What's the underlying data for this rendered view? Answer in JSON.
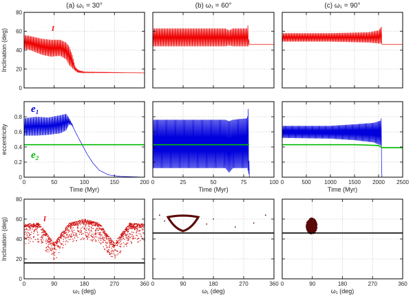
{
  "colors": {
    "inclination_red": "#ee0000",
    "ecc_blue": "#0000dd",
    "ecc_green": "#00bb00",
    "scatter_dark": "#5a0a0a",
    "scatter_red": "#d01010",
    "grid": "#b0b0b0",
    "frame": "#000000"
  },
  "chart_data": [
    {
      "id": "r0c0",
      "type": "line",
      "title": "(a) ω₁ = 30°",
      "ylabel": "Inclination (deg)",
      "xlabel": "",
      "annotation": "I",
      "xlim": [
        0,
        200
      ],
      "ylim": [
        0,
        80
      ],
      "xticks": [
        0,
        50,
        100,
        150,
        200
      ],
      "yticks": [
        0,
        20,
        40,
        60,
        80
      ],
      "yticklabels": [
        "0",
        "20",
        "40",
        "60",
        "80"
      ],
      "xticklabels": [],
      "series": [
        {
          "name": "I",
          "color": "#ee0000",
          "kind": "band",
          "points": [
            [
              0,
              41,
              56
            ],
            [
              10,
              40,
              55
            ],
            [
              30,
              35,
              52
            ],
            [
              45,
              33,
              51
            ],
            [
              60,
              34,
              51
            ],
            [
              70,
              30,
              48
            ],
            [
              75,
              24,
              44
            ],
            [
              80,
              21,
              35
            ],
            [
              85,
              18,
              22
            ],
            [
              90,
              16,
              19
            ],
            [
              100,
              16,
              17
            ],
            [
              200,
              16,
              16
            ]
          ]
        }
      ]
    },
    {
      "id": "r0c1",
      "type": "line",
      "title": "(b) ω₁ = 60°",
      "ylabel": "",
      "xlabel": "",
      "annotation": "",
      "xlim": [
        0,
        100
      ],
      "ylim": [
        0,
        80
      ],
      "xticks": [
        0,
        25,
        50,
        75,
        100
      ],
      "yticks": [
        0,
        20,
        40,
        60,
        80
      ],
      "yticklabels": [],
      "xticklabels": [],
      "series": [
        {
          "name": "I",
          "color": "#ee0000",
          "kind": "band",
          "points": [
            [
              0,
              44,
              63
            ],
            [
              60,
              44,
              63
            ],
            [
              63,
              45,
              61
            ],
            [
              66,
              44,
              63
            ],
            [
              78,
              44,
              63
            ],
            [
              79,
              44,
              70
            ],
            [
              79.3,
              46,
              46
            ],
            [
              100,
              46,
              46
            ]
          ]
        }
      ]
    },
    {
      "id": "r0c2",
      "type": "line",
      "title": "(c) ω₁ = 90°",
      "ylabel": "",
      "xlabel": "",
      "annotation": "",
      "xlim": [
        0,
        2500
      ],
      "ylim": [
        0,
        80
      ],
      "xticks": [
        0,
        500,
        1000,
        1500,
        2000,
        2500
      ],
      "yticks": [
        0,
        20,
        40,
        60,
        80
      ],
      "yticklabels": [],
      "xticklabels": [],
      "series": [
        {
          "name": "I",
          "color": "#ee0000",
          "kind": "band",
          "points": [
            [
              0,
              49,
              58
            ],
            [
              1000,
              49,
              58
            ],
            [
              1800,
              48,
              59
            ],
            [
              2000,
              47,
              61
            ],
            [
              2060,
              47,
              65
            ],
            [
              2075,
              46,
              46
            ],
            [
              2500,
              46,
              46
            ]
          ]
        }
      ]
    },
    {
      "id": "r1c0",
      "type": "line",
      "title": "",
      "ylabel": "eccentricity",
      "xlabel": "Time (Myr)",
      "annotation": "e₁",
      "annotation2": "e₂",
      "xlim": [
        0,
        200
      ],
      "ylim": [
        0,
        1
      ],
      "xticks": [
        0,
        50,
        100,
        150,
        200
      ],
      "yticks": [
        0,
        0.2,
        0.4,
        0.6,
        0.8
      ],
      "yticklabels": [
        "0",
        "0.2",
        "0.4",
        "0.6",
        "0.8"
      ],
      "xticklabels": [
        "0",
        "50",
        "100",
        "150",
        "200"
      ],
      "series": [
        {
          "name": "e1",
          "color": "#0000dd",
          "kind": "band",
          "points": [
            [
              0,
              0.55,
              0.78
            ],
            [
              20,
              0.55,
              0.8
            ],
            [
              40,
              0.56,
              0.79
            ],
            [
              60,
              0.58,
              0.82
            ],
            [
              70,
              0.62,
              0.84
            ],
            [
              75,
              0.7,
              0.78
            ],
            [
              80,
              0.68,
              0.7
            ],
            [
              85,
              0.6,
              0.6
            ],
            [
              95,
              0.45,
              0.45
            ],
            [
              105,
              0.3,
              0.3
            ],
            [
              115,
              0.18,
              0.18
            ],
            [
              125,
              0.09,
              0.09
            ],
            [
              140,
              0.03,
              0.03
            ],
            [
              160,
              0.01,
              0.01
            ],
            [
              200,
              0.0,
              0.0
            ]
          ]
        },
        {
          "name": "e2",
          "color": "#00bb00",
          "kind": "line",
          "points": [
            [
              0,
              0.43
            ],
            [
              100,
              0.43
            ],
            [
              200,
              0.43
            ]
          ]
        }
      ]
    },
    {
      "id": "r1c1",
      "type": "line",
      "title": "",
      "ylabel": "",
      "xlabel": "Time (Myr)",
      "annotation": "",
      "xlim": [
        0,
        100
      ],
      "ylim": [
        0,
        1
      ],
      "xticks": [
        0,
        25,
        50,
        75,
        100
      ],
      "yticks": [
        0,
        0.2,
        0.4,
        0.6,
        0.8
      ],
      "yticklabels": [],
      "xticklabels": [
        "0",
        "25",
        "50",
        "75",
        "100"
      ],
      "series": [
        {
          "name": "e1",
          "color": "#0000dd",
          "kind": "band",
          "points": [
            [
              0,
              0.12,
              0.76
            ],
            [
              60,
              0.12,
              0.76
            ],
            [
              63,
              0.06,
              0.74
            ],
            [
              66,
              0.12,
              0.76
            ],
            [
              78,
              0.12,
              0.78
            ],
            [
              79,
              0.05,
              0.94
            ],
            [
              79.5,
              0.0,
              0.0
            ],
            [
              80,
              0.0,
              0.0
            ]
          ]
        },
        {
          "name": "e2",
          "color": "#00bb00",
          "kind": "line",
          "points": [
            [
              0,
              0.43
            ],
            [
              79,
              0.43
            ],
            [
              79.5,
              0.43
            ]
          ]
        }
      ]
    },
    {
      "id": "r1c2",
      "type": "line",
      "title": "",
      "ylabel": "",
      "xlabel": "Time (Myr)",
      "annotation": "",
      "xlim": [
        0,
        2500
      ],
      "ylim": [
        0,
        1
      ],
      "xticks": [
        0,
        500,
        1000,
        1500,
        2000,
        2500
      ],
      "yticks": [
        0,
        0.2,
        0.4,
        0.6,
        0.8
      ],
      "yticklabels": [],
      "xticklabels": [
        "0",
        "500",
        "1000",
        "1500",
        "2000",
        "2500"
      ],
      "series": [
        {
          "name": "e1",
          "color": "#0000dd",
          "kind": "band",
          "points": [
            [
              0,
              0.52,
              0.68
            ],
            [
              1000,
              0.51,
              0.68
            ],
            [
              1500,
              0.49,
              0.7
            ],
            [
              1900,
              0.46,
              0.72
            ],
            [
              2050,
              0.42,
              0.75
            ],
            [
              2060,
              0.2,
              0.82
            ],
            [
              2070,
              0.0,
              0.0
            ]
          ]
        },
        {
          "name": "e2",
          "color": "#00bb00",
          "kind": "line",
          "points": [
            [
              0,
              0.43
            ],
            [
              1500,
              0.43
            ],
            [
              2000,
              0.42
            ],
            [
              2070,
              0.39
            ],
            [
              2500,
              0.39
            ]
          ]
        }
      ]
    },
    {
      "id": "r2c0",
      "type": "scatter",
      "title": "",
      "ylabel": "Inclination (deg)",
      "xlabel": "ω₁ (deg)",
      "annotation": "I",
      "xlim": [
        0,
        360
      ],
      "ylim": [
        0,
        80
      ],
      "xticks": [
        0,
        90,
        180,
        270,
        360
      ],
      "yticks": [
        0,
        20,
        40,
        60,
        80
      ],
      "yticklabels": [
        "0",
        "20",
        "40",
        "60",
        "80"
      ],
      "xticklabels": [
        "0",
        "90",
        "180",
        "270",
        "360"
      ],
      "series": [
        {
          "name": "I(ω₁) band",
          "color": "#d01010",
          "kind": "wave_scatter",
          "points": [
            [
              0,
              35,
              55
            ],
            [
              45,
              36,
              56
            ],
            [
              90,
              18,
              36
            ],
            [
              135,
              36,
              56
            ],
            [
              180,
              40,
              60
            ],
            [
              225,
              36,
              56
            ],
            [
              270,
              18,
              36
            ],
            [
              315,
              36,
              56
            ],
            [
              360,
              35,
              55
            ]
          ]
        },
        {
          "name": "I(ω₁) final",
          "color": "#000000",
          "kind": "line",
          "points": [
            [
              0,
              16
            ],
            [
              360,
              16
            ]
          ]
        }
      ]
    },
    {
      "id": "r2c1",
      "type": "scatter",
      "title": "",
      "ylabel": "",
      "xlabel": "ω₁ (deg)",
      "annotation": "",
      "xlim": [
        0,
        360
      ],
      "ylim": [
        0,
        80
      ],
      "xticks": [
        0,
        90,
        180,
        270,
        360
      ],
      "yticks": [
        0,
        20,
        40,
        60,
        80
      ],
      "yticklabels": [],
      "xticklabels": [
        "0",
        "90",
        "180",
        "270",
        "360"
      ],
      "series": [
        {
          "name": "libration loop",
          "color": "#5a0a0a",
          "kind": "loop",
          "points": [
            [
              45,
              62
            ],
            [
              55,
              56
            ],
            [
              70,
              50
            ],
            [
              90,
              48
            ],
            [
              110,
              50
            ],
            [
              125,
              56
            ],
            [
              135,
              62
            ],
            [
              90,
              63
            ]
          ]
        },
        {
          "name": "final",
          "color": "#000000",
          "kind": "line",
          "points": [
            [
              0,
              46
            ],
            [
              360,
              46
            ]
          ]
        },
        {
          "name": "scattered",
          "color": "#5a0a0a",
          "kind": "points",
          "points": [
            [
              20,
              64
            ],
            [
              35,
              58
            ],
            [
              160,
              55
            ],
            [
              180,
              60
            ],
            [
              245,
              52
            ],
            [
              300,
              56
            ],
            [
              335,
              64
            ]
          ]
        }
      ]
    },
    {
      "id": "r2c2",
      "type": "scatter",
      "title": "",
      "ylabel": "",
      "xlabel": "ω₁ (deg)",
      "annotation": "",
      "xlim": [
        0,
        360
      ],
      "ylim": [
        0,
        80
      ],
      "xticks": [
        0,
        90,
        180,
        270,
        360
      ],
      "yticks": [
        0,
        20,
        40,
        60,
        80
      ],
      "yticklabels": [],
      "xticklabels": [
        "0",
        "90",
        "180",
        "270",
        "360"
      ],
      "series": [
        {
          "name": "cluster",
          "color": "#5a0a0a",
          "kind": "cluster",
          "points": [
            [
              88,
              53
            ]
          ]
        },
        {
          "name": "final",
          "color": "#000000",
          "kind": "line",
          "points": [
            [
              0,
              46
            ],
            [
              360,
              46
            ]
          ]
        }
      ]
    }
  ]
}
